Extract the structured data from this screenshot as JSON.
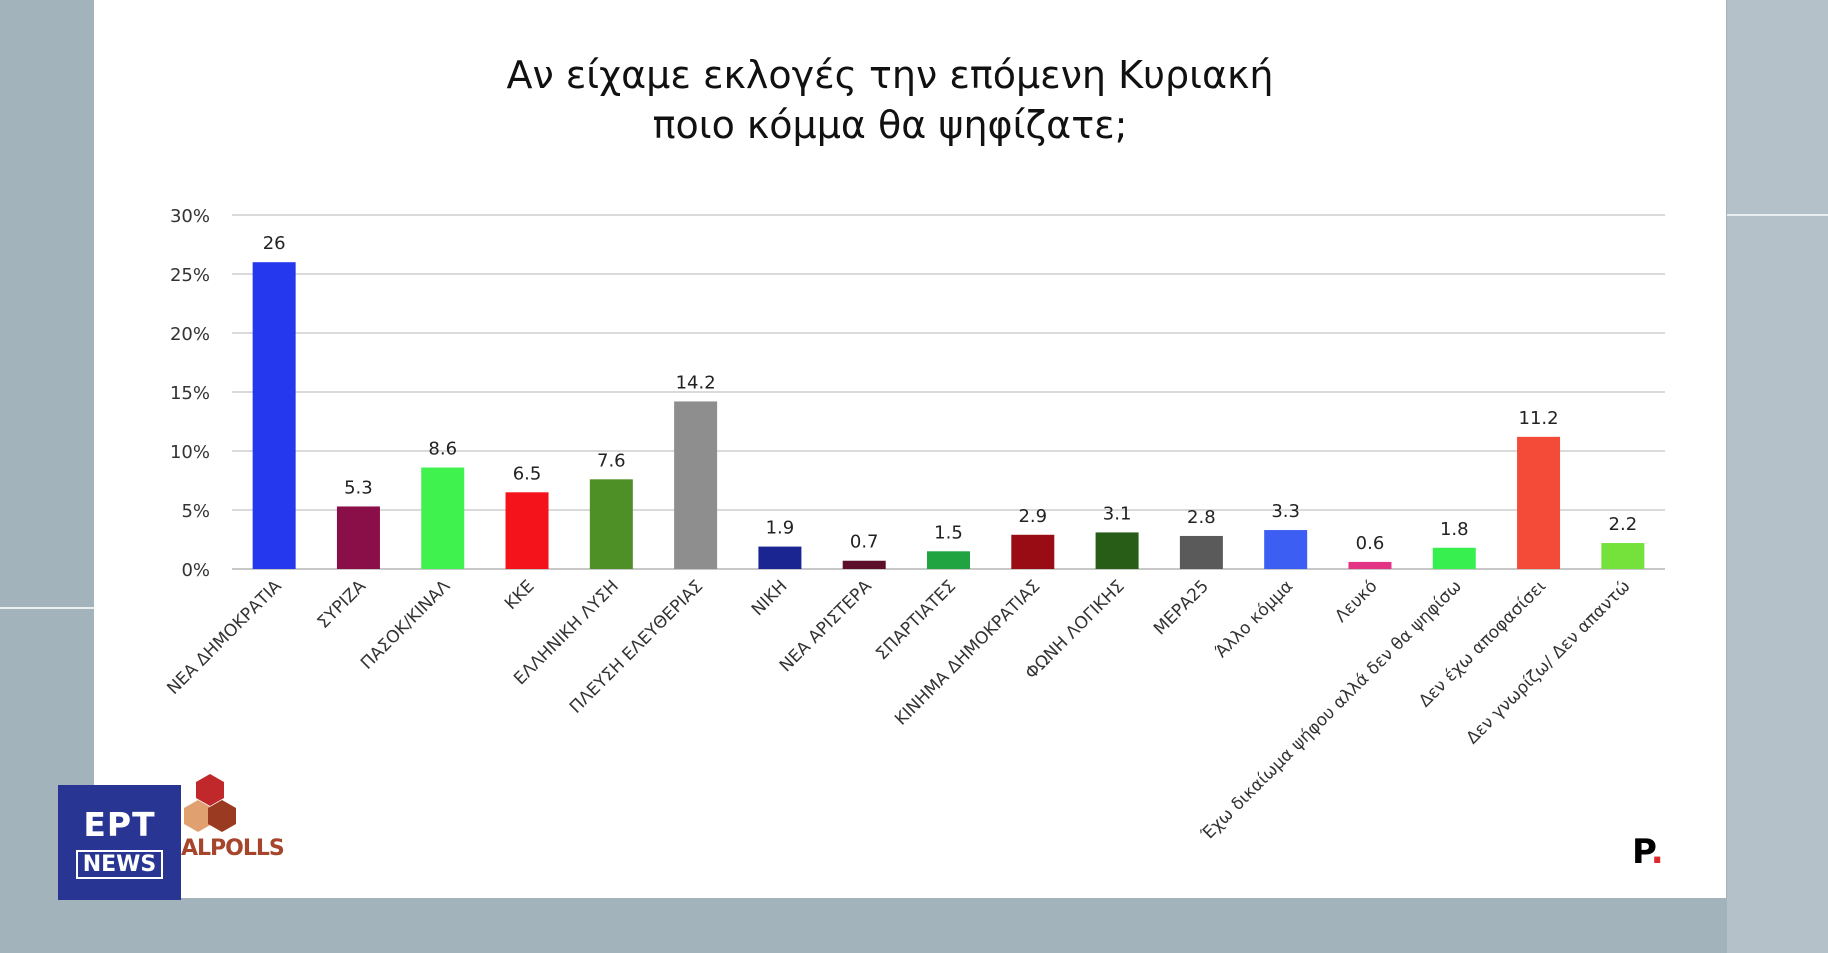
{
  "chart_data": {
    "type": "bar",
    "title": "Αν είχαμε εκλογές την επόμενη Κυριακή ποιο κόμμα θα ψηφίζατε;",
    "title_lines": [
      "Αν είχαμε εκλογές την επόμενη Κυριακή",
      "ποιο κόμμα θα ψηφίζατε;"
    ],
    "categories": [
      "ΝΕΑ ΔΗΜΟΚΡΑΤΙΑ",
      "ΣΥΡΙΖΑ",
      "ΠΑΣΟΚ/ΚΙΝΑΛ",
      "ΚΚΕ",
      "ΕΛΛΗΝΙΚΗ ΛΥΣΗ",
      "ΠΛΕΥΣΗ ΕΛΕΥΘΕΡΙΑΣ",
      "ΝΙΚΗ",
      "ΝΕΑ ΑΡΙΣΤΕΡΑ",
      "ΣΠΑΡΤΙΑΤΕΣ",
      "ΚΙΝΗΜΑ ΔΗΜΟΚΡΑΤΙΑΣ",
      "ΦΩΝΗ ΛΟΓΙΚΗΣ",
      "ΜΕΡΑ25",
      "Άλλο κόμμα",
      "Λευκό",
      "Έχω δικαίωμα ψήφου αλλά δεν θα ψηφίσω",
      "Δεν έχω αποφασίσει",
      "Δεν γνωρίζω/ Δεν απαντώ"
    ],
    "values": [
      26,
      5.3,
      8.6,
      6.5,
      7.6,
      14.2,
      1.9,
      0.7,
      1.5,
      2.9,
      3.1,
      2.8,
      3.3,
      0.6,
      1.8,
      11.2,
      2.2
    ],
    "value_labels": [
      "26",
      "5.3",
      "8.6",
      "6.5",
      "7.6",
      "14.2",
      "1.9",
      "0.7",
      "1.5",
      "2.9",
      "3.1",
      "2.8",
      "3.3",
      "0.6",
      "1.8",
      "11.2",
      "2.2"
    ],
    "colors": [
      "#2538ee",
      "#8a0f48",
      "#3ff24d",
      "#f4131a",
      "#4e8f26",
      "#8e8e8e",
      "#1a2591",
      "#5c0e2b",
      "#20a442",
      "#9a0c14",
      "#275d17",
      "#5a5a5a",
      "#3c5ef2",
      "#e23385",
      "#37f04f",
      "#f44a38",
      "#74e23a"
    ],
    "yticks": [
      "0%",
      "5%",
      "10%",
      "15%",
      "20%",
      "25%",
      "30%"
    ],
    "ylim": [
      0,
      30
    ],
    "grid": true
  },
  "logos": {
    "broadcaster": "ΕΡΤ",
    "broadcaster_sub": "NEWS",
    "pollster": "ALPOLLS",
    "publisher": "P",
    "publisher_dot": "."
  }
}
